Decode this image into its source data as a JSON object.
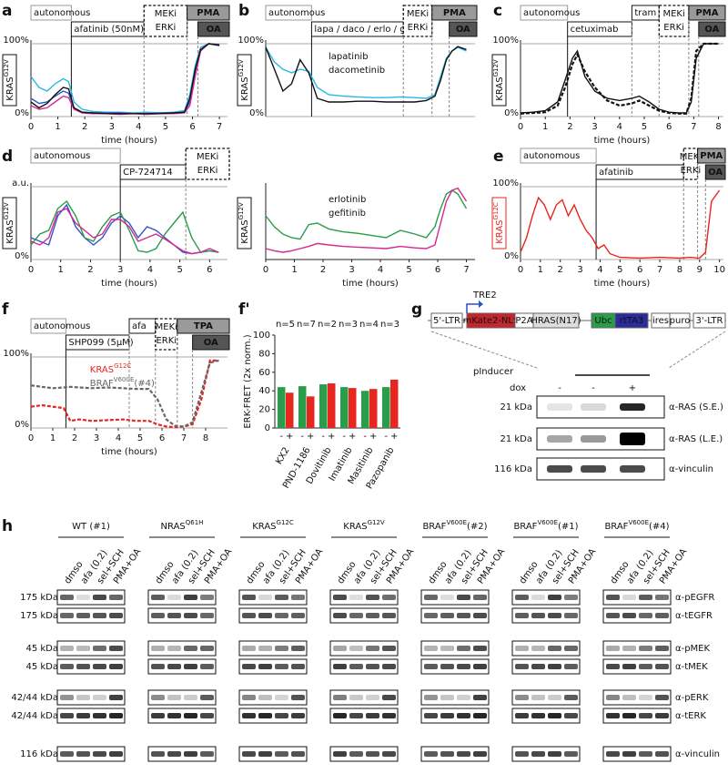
{
  "chart_data": [
    {
      "type": "line",
      "panel": "a",
      "ylabel": [
        "KRAS",
        "G12V"
      ],
      "xlabel": "time (hours)",
      "xlim": [
        0,
        7.3
      ],
      "xticks": [
        0,
        1,
        2,
        3,
        4,
        5,
        6,
        7
      ],
      "ylim": [
        0,
        100
      ],
      "yticks": [
        {
          "value": 0,
          "label": "0%"
        },
        {
          "value": 100,
          "label": "100%"
        }
      ],
      "treatments": [
        {
          "label": [
            "autonomous"
          ],
          "start": 0,
          "style": "outline"
        },
        {
          "label": [
            "afatinib  (50nM)"
          ],
          "start": 1.5,
          "style": "solid"
        },
        {
          "label": [
            "MEKi",
            "ERKi"
          ],
          "start": 4.2,
          "style": "dashed"
        },
        {
          "label": [
            "PMA"
          ],
          "start": 5.8,
          "style": "filled"
        },
        {
          "label": [
            "OA"
          ],
          "start": 6.2,
          "style": "dark"
        }
      ],
      "x": [
        0,
        0.3,
        0.6,
        0.9,
        1.2,
        1.4,
        1.6,
        1.9,
        2.3,
        2.8,
        3.3,
        3.8,
        4.3,
        4.8,
        5.3,
        5.7,
        5.9,
        6.1,
        6.3,
        6.6,
        7
      ],
      "series": [
        {
          "color": "#29b6e6",
          "values": [
            55,
            40,
            35,
            45,
            52,
            48,
            20,
            10,
            7,
            6,
            6,
            5,
            6,
            5,
            6,
            8,
            30,
            70,
            95,
            100,
            97
          ]
        },
        {
          "color": "#3355cc",
          "values": [
            25,
            18,
            20,
            28,
            35,
            32,
            12,
            6,
            5,
            5,
            5,
            4,
            4,
            5,
            5,
            6,
            20,
            60,
            90,
            100,
            98
          ]
        },
        {
          "color": "#d6278f",
          "values": [
            15,
            10,
            12,
            20,
            28,
            26,
            10,
            5,
            4,
            4,
            3,
            4,
            3,
            4,
            4,
            5,
            15,
            55,
            90,
            100,
            99
          ]
        },
        {
          "color": "#111111",
          "values": [
            20,
            12,
            18,
            30,
            40,
            38,
            12,
            6,
            5,
            4,
            4,
            4,
            4,
            4,
            5,
            6,
            25,
            65,
            92,
            100,
            98
          ]
        }
      ]
    },
    {
      "type": "line",
      "panel": "b",
      "ylabel": [
        "KRAS",
        "G12V"
      ],
      "xlim": [
        0,
        7.3
      ],
      "ylim": [
        0,
        100
      ],
      "yticks": [
        {
          "value": 0,
          "label": "0%"
        },
        {
          "value": 100,
          "label": "100%"
        }
      ],
      "treatments": [
        {
          "label": [
            "autonomous"
          ],
          "start": 0,
          "style": "outline"
        },
        {
          "label": [
            "lapa / daco / erlo / gefi"
          ],
          "start": 1.6,
          "style": "solid"
        },
        {
          "label": [
            "MEKi",
            "ERKi"
          ],
          "start": 4.8,
          "style": "dashed"
        },
        {
          "label": [
            "PMA"
          ],
          "start": 5.8,
          "style": "filled"
        },
        {
          "label": [
            "OA"
          ],
          "start": 6.4,
          "style": "dark"
        }
      ],
      "x": [
        0,
        0.3,
        0.6,
        0.9,
        1.2,
        1.5,
        1.8,
        2.2,
        2.7,
        3.2,
        3.7,
        4.2,
        4.7,
        5.2,
        5.6,
        5.9,
        6.1,
        6.3,
        6.5,
        6.7,
        7
      ],
      "series": [
        {
          "name": "lapatinib",
          "color": "#29b6e6",
          "values": [
            95,
            75,
            65,
            60,
            65,
            62,
            40,
            30,
            28,
            27,
            26,
            26,
            27,
            26,
            25,
            30,
            55,
            80,
            90,
            95,
            90
          ]
        },
        {
          "name": "dacometinib",
          "color": "#111111",
          "values": [
            95,
            65,
            35,
            45,
            78,
            60,
            25,
            20,
            20,
            21,
            21,
            20,
            20,
            20,
            22,
            28,
            50,
            78,
            90,
            96,
            92
          ]
        }
      ]
    },
    {
      "type": "line",
      "ylabel": [
        "KRAS",
        "G12V"
      ],
      "xlabel": "time (hours)",
      "xlim": [
        0,
        7.3
      ],
      "xticks": [
        0,
        1,
        2,
        3,
        4,
        5,
        6,
        7
      ],
      "ylim": [
        0,
        100
      ],
      "x": [
        0,
        0.3,
        0.6,
        0.9,
        1.2,
        1.5,
        1.8,
        2.2,
        2.7,
        3.2,
        3.7,
        4.2,
        4.7,
        5.2,
        5.6,
        5.9,
        6.1,
        6.3,
        6.5,
        6.7,
        7
      ],
      "series": [
        {
          "name": "erlotinib",
          "color": "#2a9d4a",
          "values": [
            60,
            45,
            35,
            30,
            28,
            48,
            50,
            42,
            38,
            36,
            33,
            30,
            40,
            35,
            30,
            45,
            70,
            90,
            95,
            90,
            70
          ]
        },
        {
          "name": "gefitinib",
          "color": "#d6278f",
          "values": [
            15,
            12,
            10,
            12,
            15,
            18,
            22,
            20,
            18,
            17,
            16,
            15,
            18,
            16,
            15,
            20,
            50,
            80,
            95,
            98,
            80
          ]
        }
      ]
    },
    {
      "type": "line",
      "panel": "c",
      "ylabel": [
        "KRAS",
        "G12V"
      ],
      "xlabel": "time (hours)",
      "xlim": [
        0,
        8.2
      ],
      "xticks": [
        0,
        1,
        2,
        3,
        4,
        5,
        6,
        7,
        8
      ],
      "ylim": [
        0,
        100
      ],
      "yticks": [
        {
          "value": 0,
          "label": "0%"
        },
        {
          "value": 100,
          "label": "100%"
        }
      ],
      "treatments": [
        {
          "label": [
            "autonomous"
          ],
          "start": 0,
          "style": "outline"
        },
        {
          "label": [
            "cetuximab"
          ],
          "start": 1.9,
          "style": "solid"
        },
        {
          "label": [
            "tram"
          ],
          "start": 4.5,
          "style": "solid"
        },
        {
          "label": [
            "MEKi",
            "ERKi"
          ],
          "start": 5.6,
          "style": "dashed"
        },
        {
          "label": [
            "PMA"
          ],
          "start": 6.8,
          "style": "filled"
        },
        {
          "label": [
            "OA"
          ],
          "start": 7.2,
          "style": "dark"
        }
      ],
      "x": [
        0,
        0.5,
        1,
        1.5,
        1.8,
        2.1,
        2.3,
        2.6,
        3,
        3.5,
        4,
        4.5,
        4.8,
        5.2,
        5.6,
        6,
        6.4,
        6.7,
        6.9,
        7.1,
        7.4,
        8
      ],
      "series": [
        {
          "color": "#111111",
          "values": [
            5,
            6,
            8,
            20,
            50,
            80,
            90,
            55,
            35,
            25,
            22,
            25,
            28,
            20,
            10,
            6,
            5,
            5,
            20,
            80,
            100,
            100
          ]
        },
        {
          "color": "#111111",
          "dash": true,
          "values": [
            4,
            5,
            6,
            15,
            40,
            72,
            85,
            62,
            40,
            22,
            15,
            18,
            22,
            15,
            8,
            5,
            4,
            4,
            25,
            90,
            100,
            100
          ]
        }
      ]
    },
    {
      "type": "line",
      "panel": "d",
      "ylabel": [
        "KRAS",
        "G12V"
      ],
      "xlabel": "time (hours)",
      "xlim": [
        0,
        6.6
      ],
      "xticks": [
        0,
        1,
        2,
        3,
        4,
        5,
        6
      ],
      "ylim": [
        0,
        100
      ],
      "yticks": [
        {
          "value": 0,
          "label": "0%"
        },
        {
          "value": 100,
          "label": "a.u."
        }
      ],
      "treatments": [
        {
          "label": [
            "autonomous"
          ],
          "start": 0,
          "style": "outline"
        },
        {
          "label": [
            "CP-724714"
          ],
          "start": 3,
          "style": "solid"
        },
        {
          "label": [
            "MEKi",
            "ERKi"
          ],
          "start": 5.2,
          "style": "dashed"
        }
      ],
      "x": [
        0,
        0.3,
        0.6,
        0.9,
        1.2,
        1.5,
        1.8,
        2.1,
        2.4,
        2.7,
        3,
        3.3,
        3.6,
        3.9,
        4.2,
        4.5,
        4.8,
        5.1,
        5.4,
        5.7,
        6,
        6.3
      ],
      "series": [
        {
          "color": "#3355cc",
          "values": [
            30,
            25,
            20,
            60,
            75,
            45,
            30,
            20,
            30,
            50,
            60,
            50,
            30,
            45,
            40,
            30,
            20,
            10,
            8,
            10,
            12,
            10
          ]
        },
        {
          "color": "#2a9d4a",
          "values": [
            20,
            35,
            40,
            70,
            80,
            60,
            30,
            25,
            45,
            60,
            65,
            40,
            12,
            10,
            15,
            35,
            50,
            65,
            30,
            10,
            12,
            10
          ]
        },
        {
          "color": "#d6278f",
          "values": [
            25,
            20,
            30,
            65,
            70,
            50,
            40,
            30,
            35,
            55,
            55,
            45,
            25,
            30,
            35,
            28,
            20,
            12,
            8,
            10,
            15,
            10
          ]
        }
      ]
    },
    {
      "type": "line",
      "panel": "e",
      "ylabel": [
        "KRAS",
        "G12C"
      ],
      "ylabel_color": "#e8251f",
      "xlabel": "time (hours)",
      "xlim": [
        0,
        10.2
      ],
      "xticks": [
        0,
        1,
        2,
        3,
        4,
        5,
        6,
        7,
        8,
        9,
        10
      ],
      "ylim": [
        0,
        100
      ],
      "yticks": [
        {
          "value": 0,
          "label": "0%"
        },
        {
          "value": 100,
          "label": "100%"
        }
      ],
      "treatments": [
        {
          "label": [
            "autonomous"
          ],
          "start": 0,
          "style": "outline"
        },
        {
          "label": [
            "afatinib"
          ],
          "start": 3.8,
          "style": "solid"
        },
        {
          "label": [
            "MEKi",
            "ERKi"
          ],
          "start": 8.2,
          "style": "dashed"
        },
        {
          "label": [
            "PMA"
          ],
          "start": 8.9,
          "style": "filled"
        },
        {
          "label": [
            "OA"
          ],
          "start": 9.3,
          "style": "dark"
        }
      ],
      "x": [
        0,
        0.3,
        0.6,
        0.9,
        1.2,
        1.5,
        1.8,
        2.1,
        2.4,
        2.7,
        3,
        3.3,
        3.6,
        3.9,
        4.2,
        4.5,
        5,
        6,
        7,
        8,
        8.5,
        9,
        9.3,
        9.6,
        10
      ],
      "series": [
        {
          "color": "#e8251f",
          "values": [
            10,
            30,
            60,
            85,
            75,
            55,
            75,
            82,
            60,
            75,
            55,
            40,
            30,
            15,
            20,
            8,
            3,
            2,
            3,
            2,
            3,
            2,
            10,
            80,
            95
          ]
        }
      ]
    },
    {
      "type": "line",
      "panel": "f",
      "xlabel": "time (hours)",
      "xlim": [
        0,
        9
      ],
      "xticks": [
        0,
        1,
        2,
        3,
        4,
        5,
        6,
        7,
        8
      ],
      "ylim": [
        0,
        100
      ],
      "yticks": [
        {
          "value": 0,
          "label": "0%"
        },
        {
          "value": 100,
          "label": "100%"
        }
      ],
      "treatments": [
        {
          "label": [
            "autonomous"
          ],
          "start": 0,
          "style": "outline"
        },
        {
          "label": [
            "SHP099 (5µM)"
          ],
          "start": 1.6,
          "style": "solid"
        },
        {
          "label": [
            "afa"
          ],
          "start": 4.5,
          "style": "solid"
        },
        {
          "label": [
            "MEKi",
            "ERKi"
          ],
          "start": 5.7,
          "style": "dashed"
        },
        {
          "label": [
            "TPA"
          ],
          "start": 6.7,
          "style": "filled"
        },
        {
          "label": [
            "OA"
          ],
          "start": 7.4,
          "style": "dark"
        }
      ],
      "x": [
        0,
        0.5,
        1,
        1.5,
        1.8,
        2.2,
        2.8,
        3.5,
        4.2,
        4.8,
        5.4,
        5.8,
        6.2,
        6.6,
        7,
        7.4,
        7.8,
        8.2,
        8.6
      ],
      "series": [
        {
          "name": [
            "KRAS",
            "G12C"
          ],
          "color": "#e8251f",
          "dash": true,
          "values": [
            30,
            32,
            30,
            28,
            10,
            12,
            10,
            11,
            12,
            10,
            10,
            5,
            2,
            1,
            2,
            5,
            40,
            95,
            95
          ]
        },
        {
          "name": [
            "BRAF",
            "V600E",
            "(#4)"
          ],
          "color": "#666666",
          "dash": true,
          "values": [
            60,
            58,
            56,
            57,
            58,
            57,
            56,
            57,
            56,
            55,
            55,
            40,
            12,
            3,
            2,
            8,
            50,
            92,
            95
          ]
        }
      ]
    },
    {
      "type": "bar",
      "panel": "f'",
      "ylabel": "ERK-FRET (2x norm.)",
      "ylim": [
        0,
        100
      ],
      "yticks": [
        0,
        20,
        40,
        60,
        80,
        100
      ],
      "categories": [
        "KX2",
        "PND-1186",
        "Dovitinib",
        "Imatinib",
        "Masitinib",
        "Pazopanib"
      ],
      "treatment_labels": [
        "-",
        "+"
      ],
      "annotations": [
        "n=5",
        "n=7",
        "n=2",
        "n=3",
        "n=4",
        "n=3"
      ],
      "series": [
        {
          "color": "#2a9d4a",
          "values": [
            44,
            45,
            47,
            44,
            40,
            44
          ]
        },
        {
          "color": "#e8251f",
          "values": [
            38,
            34,
            48,
            43,
            42,
            52
          ]
        }
      ]
    }
  ],
  "construct": {
    "panel": "g",
    "promoter": "TRE2",
    "parts": [
      "5'-LTR",
      "mKate2-NLS",
      "P2A",
      "HRAS(N17)",
      "Ubc",
      "rtTA3",
      "ires",
      "puro",
      "3'-LTR"
    ],
    "name": "pInducer"
  },
  "blot_g": {
    "label": "dox",
    "lanes": [
      "-",
      "-",
      "+"
    ],
    "rows": [
      {
        "kda": "21 kDa",
        "antibody": "α-RAS (S.E.)"
      },
      {
        "kda": "21 kDa",
        "antibody": "α-RAS (L.E.)"
      },
      {
        "kda": "116 kDa",
        "antibody": "α-vinculin"
      }
    ]
  },
  "blot_h": {
    "panel": "h",
    "groups": [
      [
        "WT (#1)"
      ],
      [
        "NRAS",
        "Q61H"
      ],
      [
        "KRAS",
        "G12C"
      ],
      [
        "KRAS",
        "G12V"
      ],
      [
        "BRAF",
        "V600E",
        "(#2)"
      ],
      [
        "BRAF",
        "V600E",
        "(#1)"
      ],
      [
        "BRAF",
        "V600E",
        "(#4)"
      ]
    ],
    "lanes": [
      "dmso",
      "afa (0.2)",
      "sel+SCH",
      "PMA+OA"
    ],
    "rows": [
      {
        "kda": "175 kDa",
        "antibody": "α-pEGFR"
      },
      {
        "kda": "175 kDa",
        "antibody": "α-tEGFR"
      },
      {
        "kda": "45 kDa",
        "antibody": "α-pMEK"
      },
      {
        "kda": "45 kDa",
        "antibody": "α-tMEK"
      },
      {
        "kda": "42/44 kDa",
        "antibody": "α-pERK"
      },
      {
        "kda": "42/44 kDa",
        "antibody": "α-tERK"
      },
      {
        "kda": "116 kDa",
        "antibody": "α-vinculin"
      }
    ]
  }
}
